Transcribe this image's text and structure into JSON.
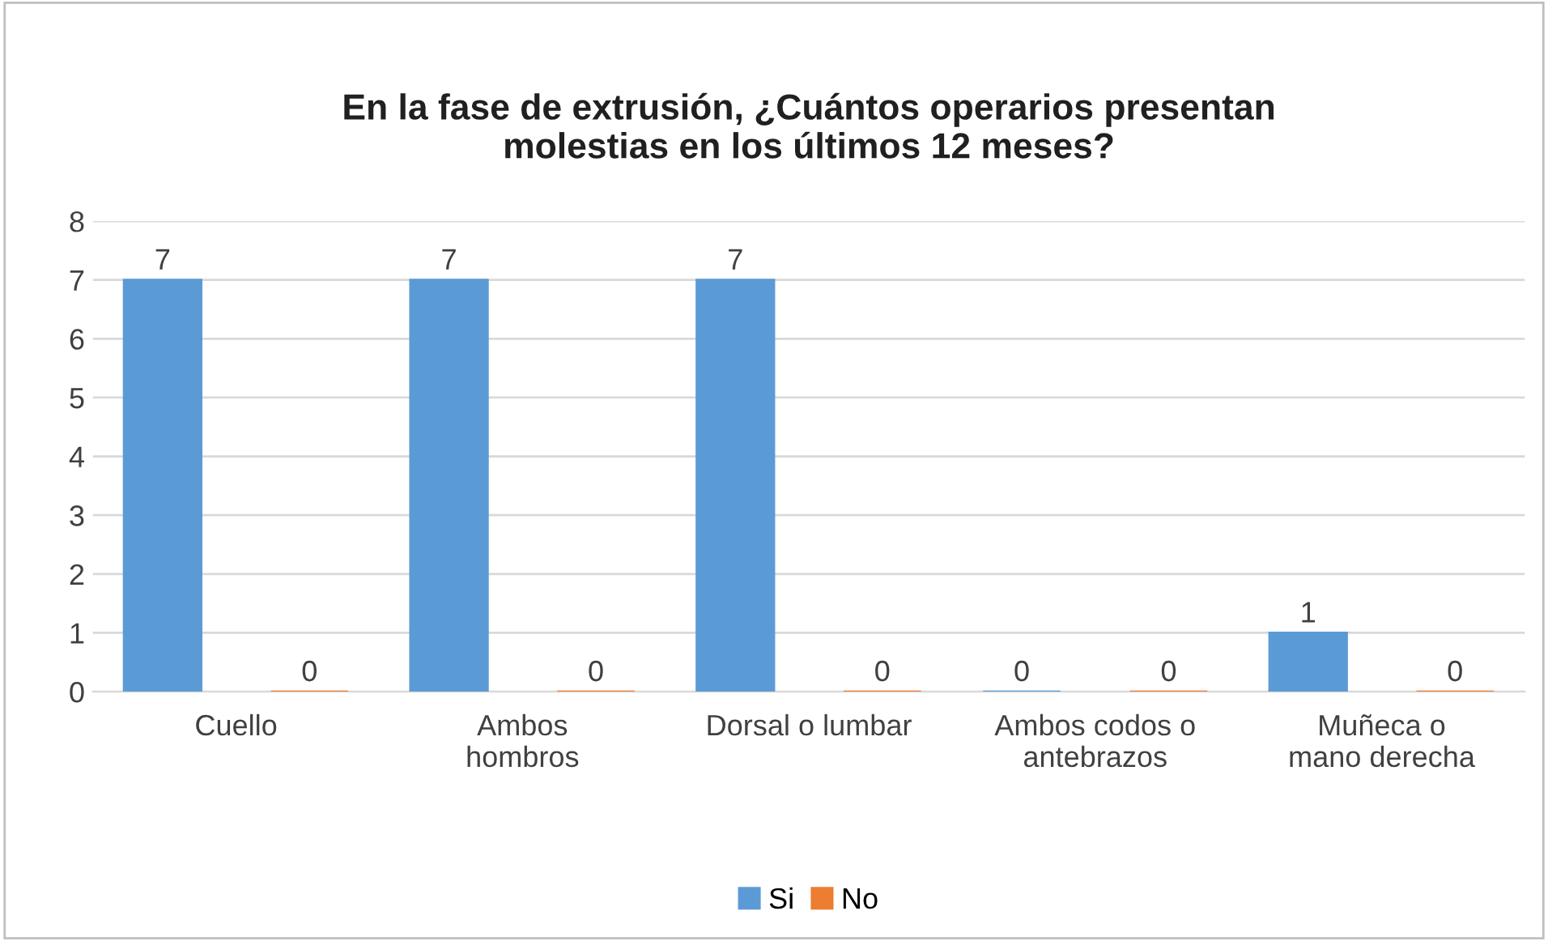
{
  "chart_data": {
    "type": "bar",
    "title": "En la fase de extrusión, ¿Cuántos operarios presentan\nmolestias en los últimos 12 meses?",
    "categories": [
      "Cuello",
      "Ambos\nhombros",
      "Dorsal o lumbar",
      "Ambos codos o\nantebrazos",
      "Muñeca o\nmano derecha"
    ],
    "series": [
      {
        "name": "Si",
        "color": "#5b9bd5",
        "values": [
          7,
          7,
          7,
          0,
          1
        ]
      },
      {
        "name": "No",
        "color": "#ed7d31",
        "values": [
          0,
          0,
          0,
          0,
          0
        ]
      }
    ],
    "ylim": [
      0,
      8
    ],
    "yticks": [
      0,
      1,
      2,
      3,
      4,
      5,
      6,
      7,
      8
    ],
    "grid": "y",
    "legend": "bottom",
    "data_labels": true
  }
}
